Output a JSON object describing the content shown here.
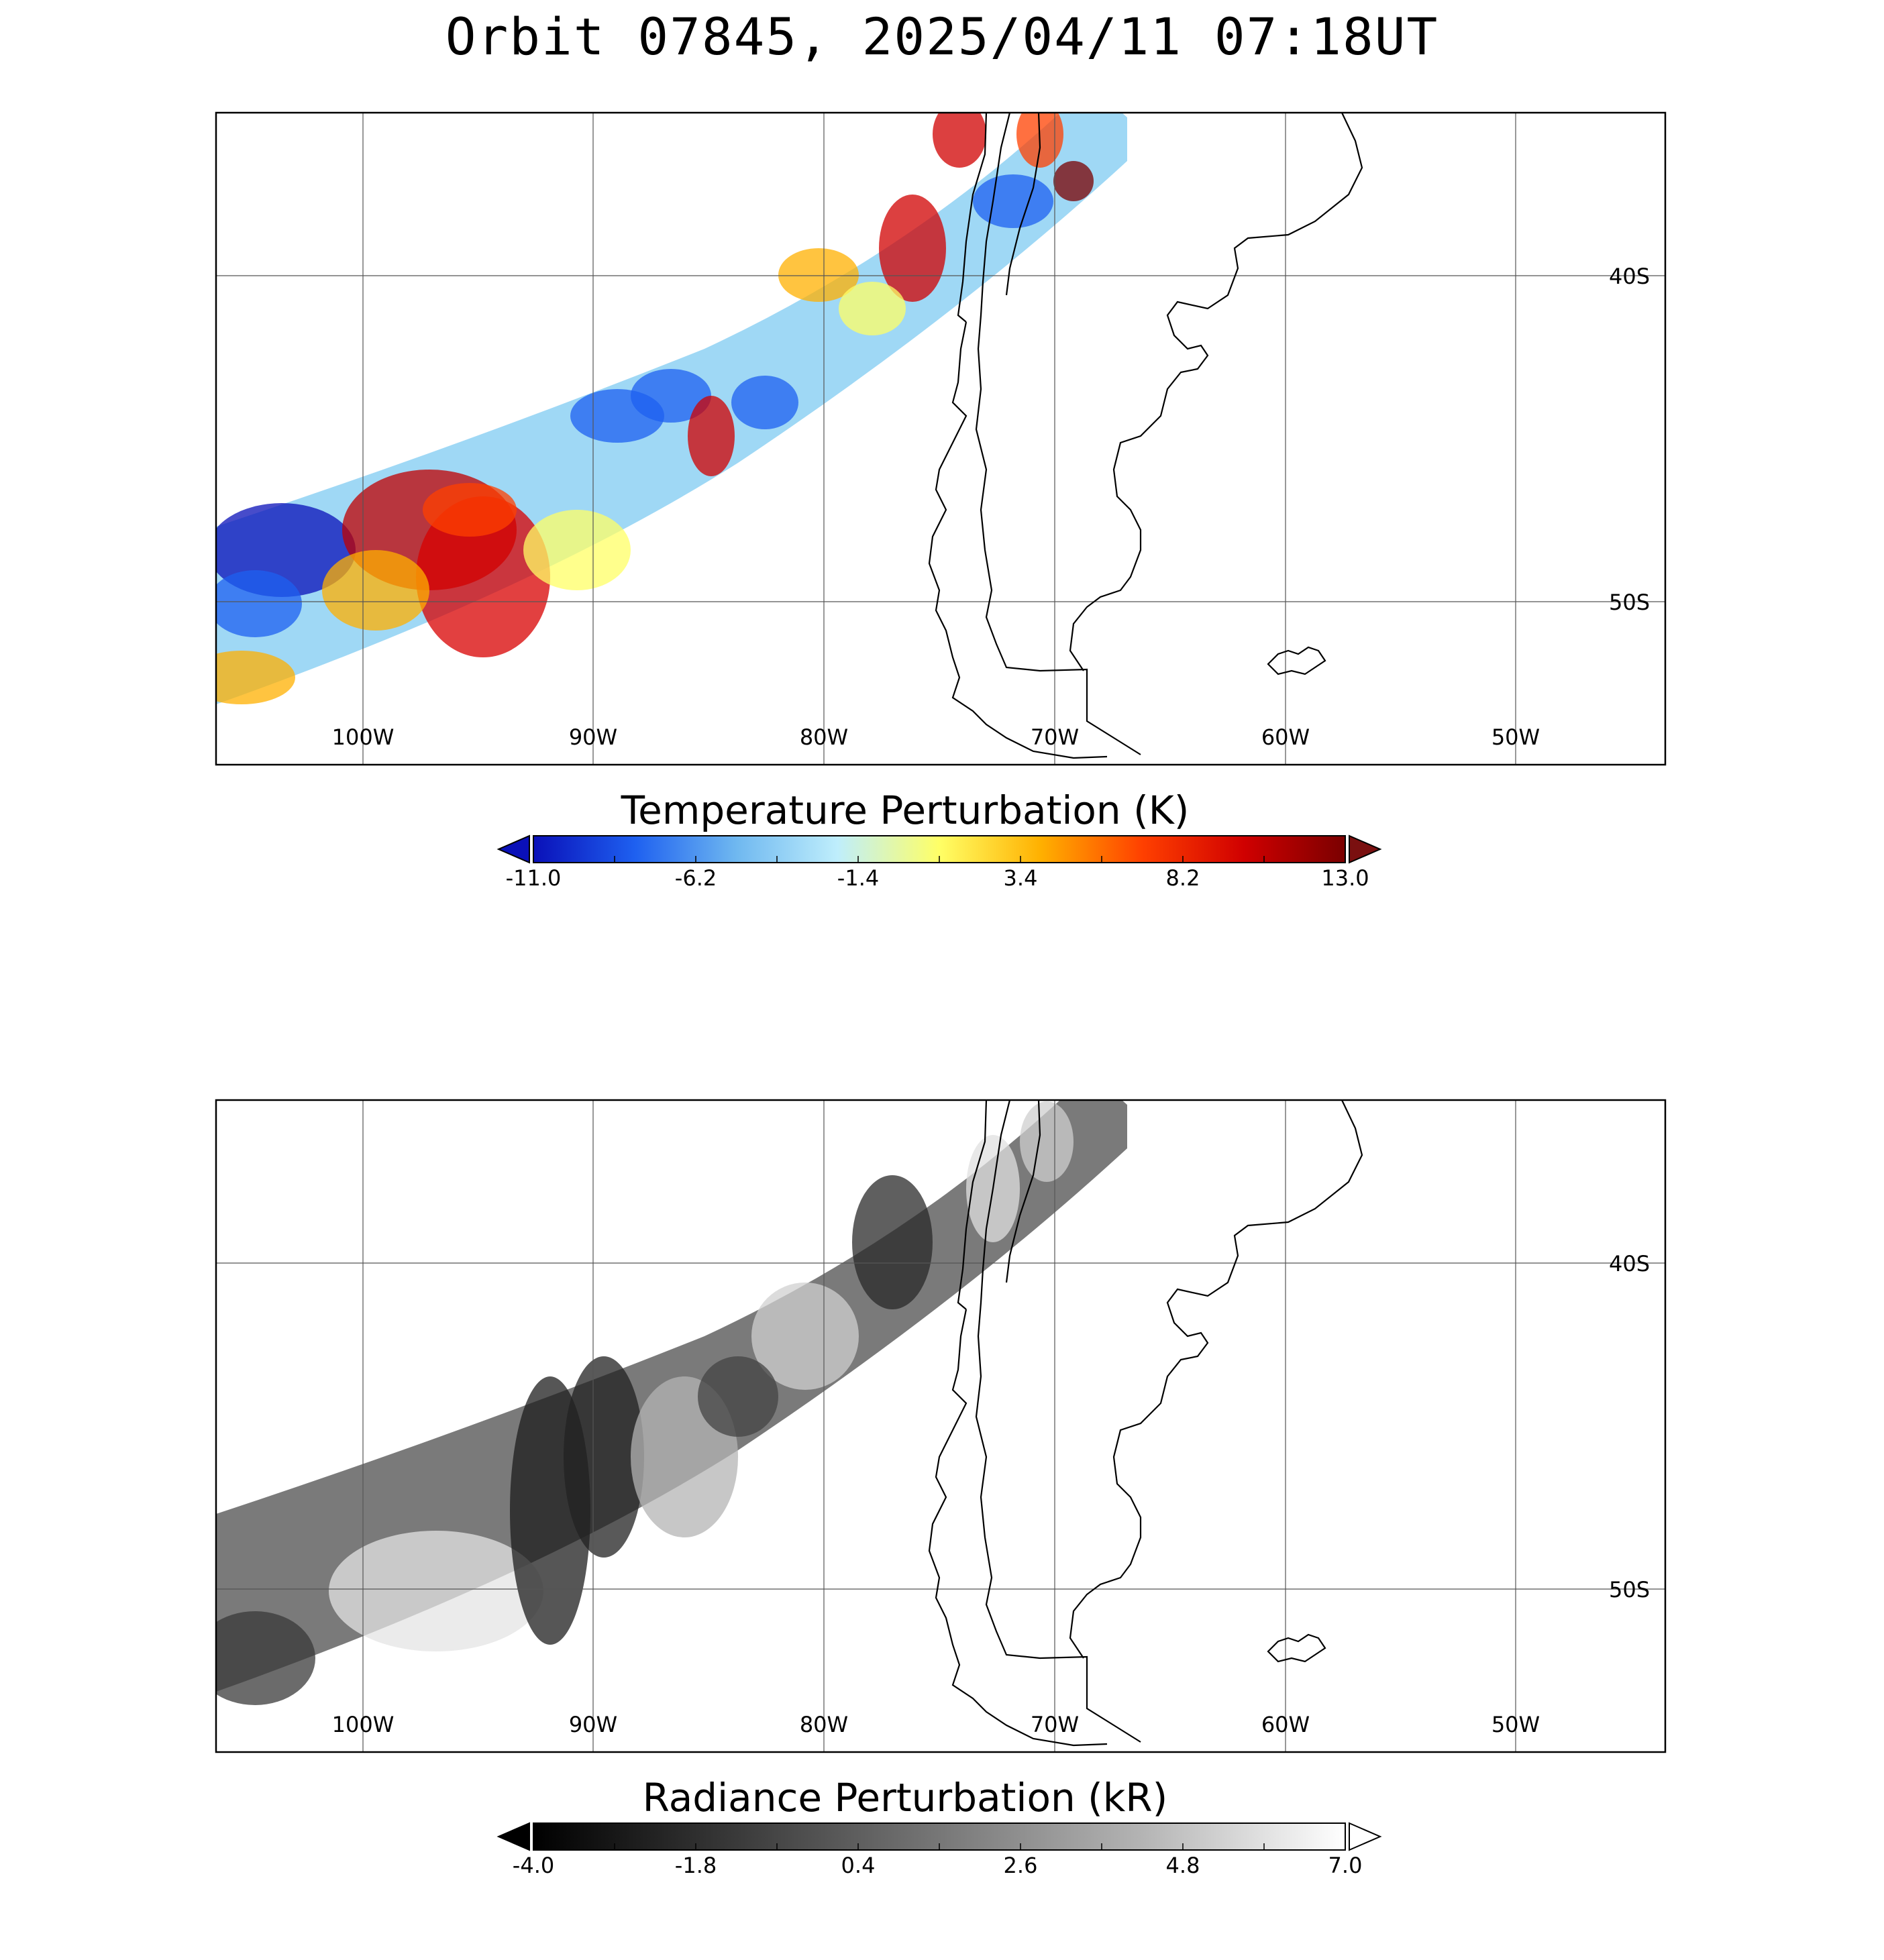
{
  "title": "Orbit 07845, 2025/04/11 07:18UT",
  "map": {
    "lon_range": [
      -106.5,
      -43.5
    ],
    "lat_range": [
      -55,
      -35
    ],
    "lon_ticks": [
      {
        "lon": -100,
        "label": "100W"
      },
      {
        "lon": -90,
        "label": "90W"
      },
      {
        "lon": -80,
        "label": "80W"
      },
      {
        "lon": -70,
        "label": "70W"
      },
      {
        "lon": -60,
        "label": "60W"
      },
      {
        "lon": -50,
        "label": "50W"
      }
    ],
    "lat_ticks": [
      {
        "lat": -40,
        "label": "40S"
      },
      {
        "lat": -50,
        "label": "50S"
      }
    ]
  },
  "panels": [
    {
      "id": "temperature",
      "colorbar_title": "Temperature Perturbation (K)",
      "colorbar_ticks": [
        "-11.0",
        "-6.2",
        "-1.4",
        "3.4",
        "8.2",
        "13.0"
      ],
      "colormap": [
        "#0a10b8",
        "#1e60f0",
        "#6fb8f0",
        "#bfeefc",
        "#ffff66",
        "#ffb000",
        "#ff4000",
        "#d00000",
        "#7a0000"
      ],
      "low_extend_color": "#0a10b8",
      "high_extend_color": "#7a1010"
    },
    {
      "id": "radiance",
      "colorbar_title": "Radiance Perturbation (kR)",
      "colorbar_ticks": [
        "-4.0",
        "-1.8",
        "0.4",
        "2.6",
        "4.8",
        "7.0"
      ],
      "colormap": [
        "#000000",
        "#3a3a3a",
        "#777777",
        "#b4b4b4",
        "#ffffff"
      ],
      "low_extend_color": "#000000",
      "high_extend_color": "#ffffff"
    }
  ]
}
